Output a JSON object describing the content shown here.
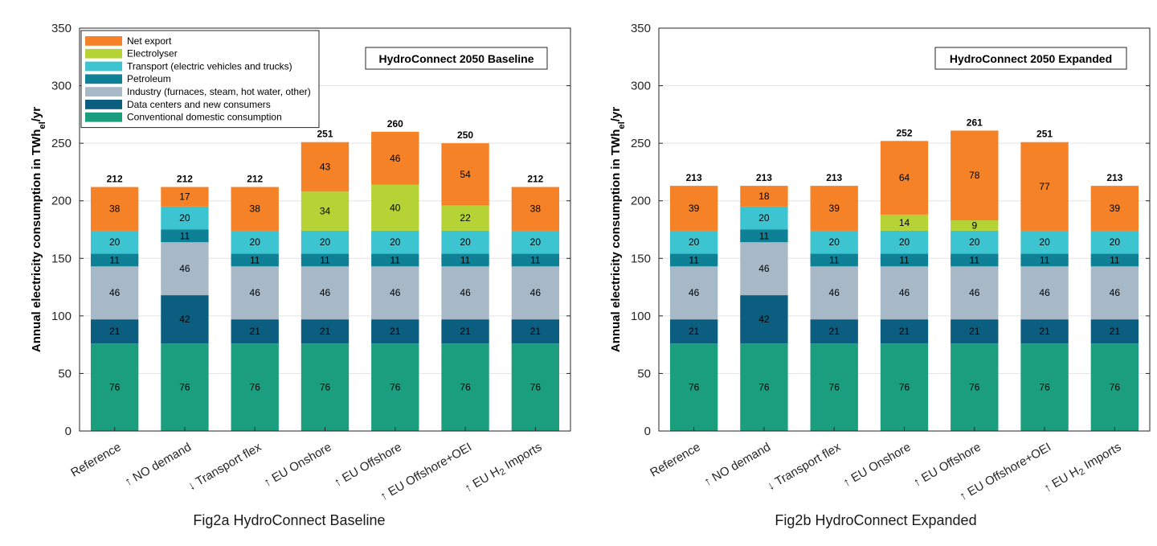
{
  "chart_data": [
    {
      "type": "bar",
      "stacked": true,
      "title": "HydroConnect 2050 Baseline",
      "caption": "Fig2a HydroConnect Baseline",
      "ylabel": "Annual electricity consumption in TWh_el/yr",
      "ylim": [
        0,
        350
      ],
      "yticks": [
        0,
        50,
        100,
        150,
        200,
        250,
        300,
        350
      ],
      "grid": true,
      "legend": "top-left",
      "categories": [
        "Reference",
        "↑ NO demand",
        "↓ Transport flex",
        "↑ EU Onshore",
        "↑ EU Offshore",
        "↑ EU Offshore+OEI",
        "↑ EU H2 Imports"
      ],
      "totals": [
        212,
        212,
        212,
        251,
        260,
        250,
        212
      ],
      "series": [
        {
          "name": "Conventional domestic consumption",
          "color": "#1b9e7e",
          "values": [
            76,
            76,
            76,
            76,
            76,
            76,
            76
          ]
        },
        {
          "name": "Data centers and new consumers",
          "color": "#0b5e80",
          "values": [
            21,
            42,
            21,
            21,
            21,
            21,
            21
          ]
        },
        {
          "name": "Industry (furnaces, steam, hot water, other)",
          "color": "#a7b9c6",
          "values": [
            46,
            46,
            46,
            46,
            46,
            46,
            46
          ]
        },
        {
          "name": "Petroleum",
          "color": "#0f8196",
          "values": [
            11,
            11,
            11,
            11,
            11,
            11,
            11
          ]
        },
        {
          "name": "Transport (electric vehicles and trucks)",
          "color": "#3cc4d0",
          "values": [
            20,
            20,
            20,
            20,
            20,
            20,
            20
          ]
        },
        {
          "name": "Electrolyser",
          "color": "#b5d334",
          "values": [
            0,
            0,
            0,
            34,
            40,
            22,
            0
          ]
        },
        {
          "name": "Net export",
          "color": "#f58227",
          "values": [
            38,
            17,
            38,
            43,
            46,
            54,
            38
          ]
        }
      ]
    },
    {
      "type": "bar",
      "stacked": true,
      "title": "HydroConnect 2050 Expanded",
      "caption": "Fig2b HydroConnect Expanded",
      "ylabel": "Annual electricity consumption in TWh_el/yr",
      "ylim": [
        0,
        350
      ],
      "yticks": [
        0,
        50,
        100,
        150,
        200,
        250,
        300,
        350
      ],
      "grid": true,
      "categories": [
        "Reference",
        "↑ NO demand",
        "↓ Transport flex",
        "↑ EU Onshore",
        "↑ EU Offshore",
        "↑ EU Offshore+OEI",
        "↑ EU H2 Imports"
      ],
      "totals": [
        213,
        213,
        213,
        252,
        261,
        251,
        213
      ],
      "series": [
        {
          "name": "Conventional domestic consumption",
          "color": "#1b9e7e",
          "values": [
            76,
            76,
            76,
            76,
            76,
            76,
            76
          ]
        },
        {
          "name": "Data centers and new consumers",
          "color": "#0b5e80",
          "values": [
            21,
            42,
            21,
            21,
            21,
            21,
            21
          ]
        },
        {
          "name": "Industry (furnaces, steam, hot water, other)",
          "color": "#a7b9c6",
          "values": [
            46,
            46,
            46,
            46,
            46,
            46,
            46
          ]
        },
        {
          "name": "Petroleum",
          "color": "#0f8196",
          "values": [
            11,
            11,
            11,
            11,
            11,
            11,
            11
          ]
        },
        {
          "name": "Transport (electric vehicles and trucks)",
          "color": "#3cc4d0",
          "values": [
            20,
            20,
            20,
            20,
            20,
            20,
            20
          ]
        },
        {
          "name": "Electrolyser",
          "color": "#b5d334",
          "values": [
            0,
            0,
            0,
            14,
            9,
            0,
            0
          ]
        },
        {
          "name": "Net export",
          "color": "#f58227",
          "values": [
            39,
            18,
            39,
            64,
            78,
            77,
            39
          ]
        }
      ]
    }
  ],
  "legend_order": [
    6,
    5,
    4,
    3,
    2,
    1,
    0
  ]
}
